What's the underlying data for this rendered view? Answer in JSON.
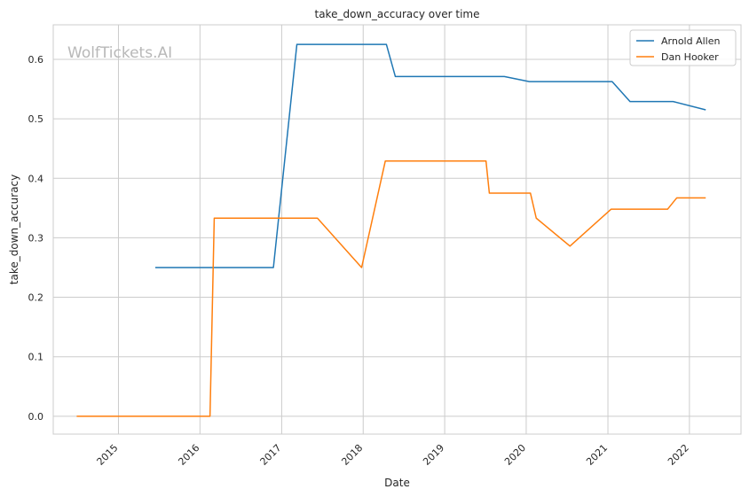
{
  "chart_data": {
    "type": "line",
    "title": "take_down_accuracy over time",
    "xlabel": "Date",
    "ylabel": "take_down_accuracy",
    "watermark": "WolfTickets.AI",
    "xlim": [
      "2014-03-15",
      "2022-08-20"
    ],
    "ylim": [
      -0.03,
      0.658
    ],
    "x_ticks": [
      "2015",
      "2016",
      "2017",
      "2018",
      "2019",
      "2020",
      "2021",
      "2022"
    ],
    "y_ticks": [
      "0.0",
      "0.1",
      "0.2",
      "0.3",
      "0.4",
      "0.5",
      "0.6"
    ],
    "grid": true,
    "legend_position": "top-right",
    "series": [
      {
        "name": "Arnold Allen",
        "color": "#1f77b4",
        "points": [
          [
            "2015-06-15",
            0.25
          ],
          [
            "2016-11-25",
            0.25
          ],
          [
            "2017-03-10",
            0.625
          ],
          [
            "2018-04-15",
            0.625
          ],
          [
            "2018-05-25",
            0.571
          ],
          [
            "2019-09-25",
            0.571
          ],
          [
            "2020-01-15",
            0.5625
          ],
          [
            "2021-01-20",
            0.5625
          ],
          [
            "2021-04-10",
            0.529
          ],
          [
            "2021-10-20",
            0.529
          ],
          [
            "2022-03-15",
            0.515
          ]
        ]
      },
      {
        "name": "Dan Hooker",
        "color": "#ff7f0e",
        "points": [
          [
            "2014-06-28",
            0.0
          ],
          [
            "2016-02-15",
            0.0
          ],
          [
            "2016-03-05",
            0.333
          ],
          [
            "2017-06-10",
            0.333
          ],
          [
            "2017-12-25",
            0.25
          ],
          [
            "2018-04-10",
            0.429
          ],
          [
            "2019-07-05",
            0.429
          ],
          [
            "2019-07-20",
            0.375
          ],
          [
            "2020-01-20",
            0.375
          ],
          [
            "2020-02-15",
            0.333
          ],
          [
            "2020-07-15",
            0.286
          ],
          [
            "2021-01-15",
            0.348
          ],
          [
            "2021-09-25",
            0.348
          ],
          [
            "2021-11-05",
            0.367
          ],
          [
            "2022-03-15",
            0.367
          ]
        ]
      }
    ]
  }
}
